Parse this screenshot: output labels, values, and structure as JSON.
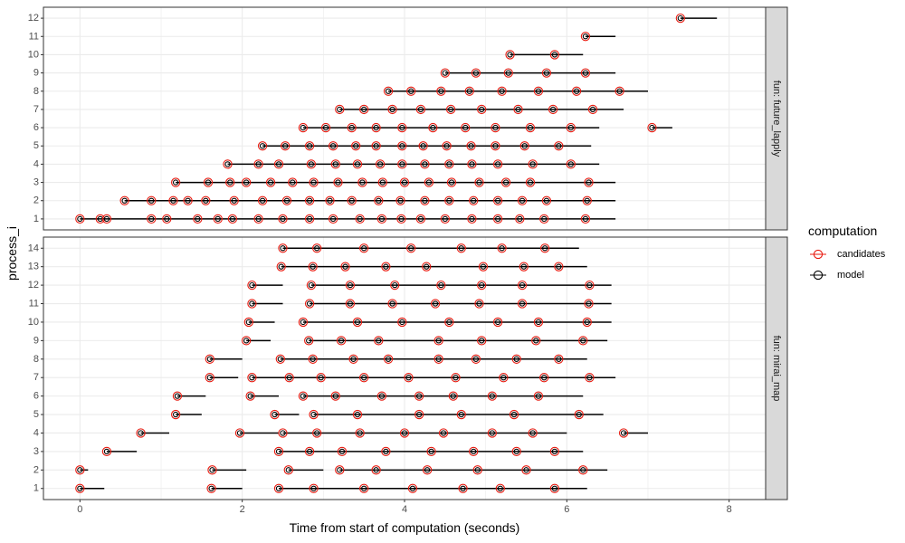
{
  "chart_data": {
    "type": "scatter",
    "xlabel": "Time from start of computation (seconds)",
    "ylabel": "process_i",
    "xlim": [
      -0.45,
      8.45
    ],
    "x_ticks": [
      0,
      2,
      4,
      6,
      8
    ],
    "grid": true,
    "legend": {
      "title": "computation",
      "position": "right",
      "entries": [
        {
          "label": "candidates",
          "color": "#e8190e"
        },
        {
          "label": "model",
          "color": "#000000"
        }
      ]
    },
    "colors": {
      "candidates": "#e8190e",
      "model": "#000000",
      "segment": "#000000",
      "strip": "#d9d9d9",
      "panel_border": "#333333",
      "grid": "#ebebeb"
    },
    "panels": [
      {
        "label": "fun: future_lapply",
        "ylim": [
          0.4,
          12.6
        ],
        "y_ticks": [
          1,
          2,
          3,
          4,
          5,
          6,
          7,
          8,
          9,
          10,
          11,
          12
        ],
        "rows": [
          {
            "y": 1,
            "end": 6.6,
            "points": [
              0,
              0.25,
              0.33,
              0.88,
              1.07,
              1.45,
              1.7,
              1.88,
              2.2,
              2.5,
              2.83,
              3.12,
              3.45,
              3.72,
              3.96,
              4.2,
              4.5,
              4.83,
              5.15,
              5.42,
              5.72,
              6.23
            ]
          },
          {
            "y": 2,
            "end": 6.6,
            "points": [
              0.55,
              0.88,
              1.15,
              1.33,
              1.55,
              1.9,
              2.25,
              2.55,
              2.83,
              3.08,
              3.35,
              3.68,
              3.95,
              4.25,
              4.55,
              4.85,
              5.15,
              5.45,
              5.75,
              6.25
            ]
          },
          {
            "y": 3,
            "end": 6.6,
            "points": [
              1.18,
              1.58,
              1.85,
              2.05,
              2.35,
              2.62,
              2.88,
              3.18,
              3.48,
              3.73,
              4.0,
              4.3,
              4.58,
              4.92,
              5.25,
              5.55,
              6.27
            ]
          },
          {
            "y": 4,
            "end": 6.4,
            "points": [
              1.82,
              2.2,
              2.45,
              2.85,
              3.15,
              3.42,
              3.7,
              3.97,
              4.25,
              4.55,
              4.83,
              5.15,
              5.58,
              6.05
            ]
          },
          {
            "y": 5,
            "end": 6.3,
            "points": [
              2.25,
              2.53,
              2.83,
              3.12,
              3.4,
              3.65,
              3.97,
              4.23,
              4.52,
              4.82,
              5.12,
              5.48,
              5.9
            ]
          },
          {
            "y": 6,
            "end": 6.4,
            "points": [
              2.75,
              3.03,
              3.35,
              3.65,
              3.97,
              4.35,
              4.75,
              5.12,
              5.55,
              6.05
            ]
          },
          {
            "y": 6,
            "end": 7.3,
            "points": [
              7.05
            ]
          },
          {
            "y": 7,
            "end": 6.7,
            "points": [
              3.2,
              3.5,
              3.85,
              4.2,
              4.57,
              4.95,
              5.4,
              5.83,
              6.32
            ]
          },
          {
            "y": 8,
            "end": 7.0,
            "points": [
              3.8,
              4.08,
              4.45,
              4.8,
              5.2,
              5.65,
              6.12,
              6.65
            ]
          },
          {
            "y": 9,
            "end": 6.6,
            "points": [
              4.5,
              4.88,
              5.28,
              5.75,
              6.23
            ]
          },
          {
            "y": 10,
            "end": 6.2,
            "points": [
              5.3,
              5.85
            ]
          },
          {
            "y": 11,
            "end": 6.6,
            "points": [
              6.23
            ]
          },
          {
            "y": 12,
            "end": 7.85,
            "points": [
              7.4
            ]
          }
        ]
      },
      {
        "label": "fun: mirai_map",
        "ylim": [
          0.4,
          14.6
        ],
        "y_ticks": [
          1,
          2,
          3,
          4,
          5,
          6,
          7,
          8,
          9,
          10,
          11,
          12,
          13,
          14
        ],
        "rows": [
          {
            "y": 1,
            "end": 0.3,
            "points": [
              0
            ]
          },
          {
            "y": 1,
            "end": 2.0,
            "points": [
              1.62
            ]
          },
          {
            "y": 1,
            "end": 6.25,
            "points": [
              2.45,
              2.88,
              3.5,
              4.1,
              4.72,
              5.18,
              5.85
            ]
          },
          {
            "y": 2,
            "end": 0.1,
            "points": [
              0
            ]
          },
          {
            "y": 2,
            "end": 2.05,
            "points": [
              1.63
            ]
          },
          {
            "y": 2,
            "end": 3.0,
            "points": [
              2.57
            ]
          },
          {
            "y": 2,
            "end": 6.5,
            "points": [
              3.2,
              3.65,
              4.28,
              4.9,
              5.5,
              6.2
            ]
          },
          {
            "y": 3,
            "end": 0.7,
            "points": [
              0.33
            ]
          },
          {
            "y": 3,
            "end": 6.2,
            "points": [
              2.45,
              2.83,
              3.23,
              3.77,
              4.33,
              4.85,
              5.38,
              5.85
            ]
          },
          {
            "y": 4,
            "end": 1.1,
            "points": [
              0.75
            ]
          },
          {
            "y": 4,
            "end": 2.45,
            "points": [
              1.97
            ]
          },
          {
            "y": 4,
            "end": 6.0,
            "points": [
              2.5,
              2.92,
              3.45,
              4.0,
              4.48,
              5.08,
              5.58
            ]
          },
          {
            "y": 4,
            "end": 7.0,
            "points": [
              6.7
            ]
          },
          {
            "y": 5,
            "end": 1.5,
            "points": [
              1.18
            ]
          },
          {
            "y": 5,
            "end": 2.7,
            "points": [
              2.4
            ]
          },
          {
            "y": 5,
            "end": 6.45,
            "points": [
              2.88,
              3.42,
              4.18,
              4.7,
              5.35,
              6.15
            ]
          },
          {
            "y": 6,
            "end": 1.55,
            "points": [
              1.2
            ]
          },
          {
            "y": 6,
            "end": 2.45,
            "points": [
              2.1
            ]
          },
          {
            "y": 6,
            "end": 6.2,
            "points": [
              2.75,
              3.15,
              3.72,
              4.18,
              4.6,
              5.08,
              5.65
            ]
          },
          {
            "y": 7,
            "end": 1.95,
            "points": [
              1.6
            ]
          },
          {
            "y": 7,
            "end": 6.6,
            "points": [
              2.12,
              2.58,
              2.97,
              3.5,
              4.05,
              4.63,
              5.22,
              5.72,
              6.28
            ]
          },
          {
            "y": 8,
            "end": 2.0,
            "points": [
              1.6
            ]
          },
          {
            "y": 8,
            "end": 6.25,
            "points": [
              2.47,
              2.87,
              3.37,
              3.8,
              4.42,
              4.88,
              5.38,
              5.9
            ]
          },
          {
            "y": 9,
            "end": 2.35,
            "points": [
              2.05
            ]
          },
          {
            "y": 9,
            "end": 6.5,
            "points": [
              2.82,
              3.22,
              3.68,
              4.42,
              4.95,
              5.62,
              6.2
            ]
          },
          {
            "y": 10,
            "end": 2.4,
            "points": [
              2.08
            ]
          },
          {
            "y": 10,
            "end": 6.55,
            "points": [
              2.75,
              3.42,
              3.97,
              4.55,
              5.15,
              5.65,
              6.25
            ]
          },
          {
            "y": 11,
            "end": 2.5,
            "points": [
              2.12
            ]
          },
          {
            "y": 11,
            "end": 6.55,
            "points": [
              2.83,
              3.33,
              3.85,
              4.38,
              4.92,
              5.45,
              6.27
            ]
          },
          {
            "y": 12,
            "end": 2.5,
            "points": [
              2.12
            ]
          },
          {
            "y": 12,
            "end": 6.55,
            "points": [
              2.85,
              3.33,
              3.88,
              4.45,
              4.95,
              5.45,
              6.28
            ]
          },
          {
            "y": 13,
            "end": 6.25,
            "points": [
              2.48,
              2.87,
              3.27,
              3.77,
              4.27,
              4.97,
              5.47,
              5.9
            ]
          },
          {
            "y": 14,
            "end": 6.15,
            "points": [
              2.5,
              2.92,
              3.5,
              4.08,
              4.7,
              5.2,
              5.73
            ]
          }
        ]
      }
    ]
  }
}
